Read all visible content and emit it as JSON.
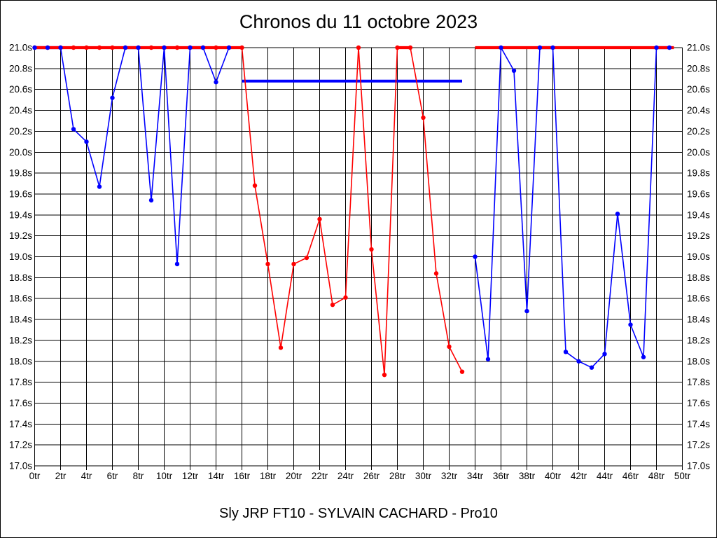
{
  "title": "Chronos du 11 octobre 2023",
  "subtitle": "Sly JRP FT10 - SYLVAIN CACHARD - Pro10",
  "colors": {
    "red_series": "#ff0000",
    "blue_series": "#0000ff",
    "grid": "#000000",
    "background": "#ffffff",
    "text": "#000000"
  },
  "chart_data": {
    "type": "line",
    "title": "Chronos du 11 octobre 2023",
    "xlim": [
      0,
      50
    ],
    "ylim": [
      17.0,
      21.0
    ],
    "x_tick_step": 2,
    "y_tick_step": 0.2,
    "grid": true,
    "legend": "none",
    "clip_value": 21.0,
    "x_tick_labels": [
      "0tr",
      "2tr",
      "4tr",
      "6tr",
      "8tr",
      "10tr",
      "12tr",
      "14tr",
      "16tr",
      "18tr",
      "20tr",
      "22tr",
      "24tr",
      "26tr",
      "28tr",
      "30tr",
      "32tr",
      "34tr",
      "36tr",
      "38tr",
      "40tr",
      "42tr",
      "44tr",
      "46tr",
      "48tr",
      "50tr"
    ],
    "y_tick_labels": [
      "21.0s",
      "20.8s",
      "20.6s",
      "20.4s",
      "20.2s",
      "20.0s",
      "19.8s",
      "19.6s",
      "19.4s",
      "19.2s",
      "19.0s",
      "18.8s",
      "18.6s",
      "18.4s",
      "18.2s",
      "18.0s",
      "17.8s",
      "17.6s",
      "17.4s",
      "17.2s",
      "17.0s"
    ],
    "series": [
      {
        "name": "red-run",
        "color": "#ff0000",
        "segments": [
          {
            "start_lap": 0,
            "markers": true,
            "values": [
              21.0,
              21.0,
              21.0,
              21.0,
              21.0,
              21.0,
              21.0,
              21.0,
              21.0,
              21.0,
              21.0,
              21.0,
              21.0,
              21.0,
              21.0,
              21.0,
              21.0,
              19.68,
              18.93,
              18.13,
              18.93,
              18.99,
              19.36,
              18.54,
              18.61,
              21.0,
              19.07,
              17.87,
              21.0,
              21.0,
              20.33,
              18.84,
              18.14,
              17.9
            ]
          },
          {
            "start_lap": 34,
            "markers": false,
            "x": [
              34,
              49.35
            ],
            "values": [
              21.0,
              21.0
            ]
          }
        ]
      },
      {
        "name": "blue-run",
        "color": "#0000ff",
        "segments": [
          {
            "start_lap": 0,
            "markers": true,
            "values": [
              21.0,
              21.0,
              21.0,
              20.22,
              20.1,
              19.67,
              20.52,
              21.0,
              21.0,
              19.54,
              21.0,
              18.93,
              21.0,
              21.0,
              20.67,
              21.0
            ]
          },
          {
            "start_lap": 34,
            "markers": true,
            "values": [
              19.0,
              18.02,
              21.0,
              20.78,
              18.48,
              21.0,
              21.0,
              18.09,
              18.0,
              17.94,
              18.07,
              19.41,
              18.35,
              18.04,
              21.0,
              21.0
            ]
          }
        ]
      }
    ],
    "annotations": [
      {
        "type": "hline",
        "name": "blue-average-line",
        "color": "#0000ff",
        "y": 20.68,
        "x_start": 16,
        "x_end": 33,
        "width": 4
      }
    ]
  }
}
